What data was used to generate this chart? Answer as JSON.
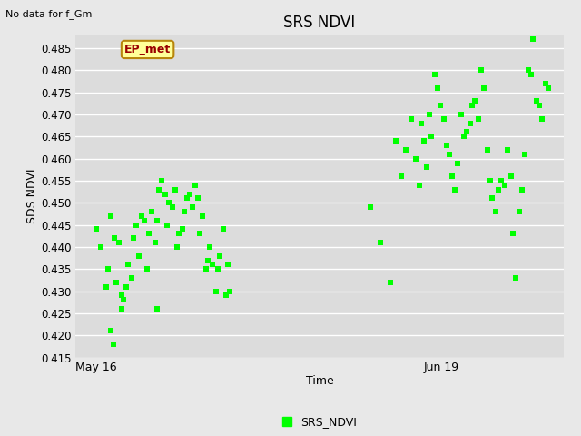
{
  "title": "SRS NDVI",
  "top_left_text": "No data for f_Gm",
  "xlabel": "Time",
  "ylabel": "SDS NDVI",
  "ylim": [
    0.415,
    0.488
  ],
  "yticks": [
    0.415,
    0.42,
    0.425,
    0.43,
    0.435,
    0.44,
    0.445,
    0.45,
    0.455,
    0.46,
    0.465,
    0.47,
    0.475,
    0.48,
    0.485
  ],
  "xtick_labels": [
    "May 16",
    "Jun 19"
  ],
  "xtick_positions": [
    0,
    34
  ],
  "xlim": [
    -2,
    46
  ],
  "legend_label": "SRS_NDVI",
  "marker_color": "#00FF00",
  "fig_bg_color": "#E8E8E8",
  "plot_bg_color": "#DCDCDC",
  "annotation_text": "EP_met",
  "annotation_color": "#990000",
  "annotation_bg": "#FFFF99",
  "annotation_border": "#B8860B",
  "points_group1": [
    [
      0.0,
      0.444
    ],
    [
      0.5,
      0.44
    ],
    [
      1.0,
      0.431
    ],
    [
      1.2,
      0.435
    ],
    [
      1.5,
      0.447
    ],
    [
      1.8,
      0.442
    ],
    [
      2.0,
      0.432
    ],
    [
      2.3,
      0.441
    ],
    [
      2.5,
      0.429
    ],
    [
      2.7,
      0.428
    ],
    [
      3.0,
      0.431
    ],
    [
      3.2,
      0.436
    ],
    [
      3.5,
      0.433
    ],
    [
      3.7,
      0.442
    ],
    [
      4.0,
      0.445
    ],
    [
      4.2,
      0.438
    ],
    [
      4.5,
      0.447
    ],
    [
      4.8,
      0.446
    ],
    [
      5.0,
      0.435
    ],
    [
      5.2,
      0.443
    ],
    [
      5.5,
      0.448
    ],
    [
      5.8,
      0.441
    ],
    [
      6.0,
      0.446
    ],
    [
      6.2,
      0.453
    ],
    [
      6.5,
      0.455
    ],
    [
      6.8,
      0.452
    ],
    [
      7.0,
      0.445
    ],
    [
      7.2,
      0.45
    ],
    [
      7.5,
      0.449
    ],
    [
      7.8,
      0.453
    ],
    [
      8.0,
      0.44
    ],
    [
      8.2,
      0.443
    ],
    [
      8.5,
      0.444
    ],
    [
      8.7,
      0.448
    ],
    [
      9.0,
      0.451
    ],
    [
      9.2,
      0.452
    ],
    [
      9.5,
      0.449
    ],
    [
      9.8,
      0.454
    ],
    [
      10.0,
      0.451
    ],
    [
      10.2,
      0.443
    ],
    [
      10.5,
      0.447
    ],
    [
      10.8,
      0.435
    ],
    [
      11.0,
      0.437
    ],
    [
      11.2,
      0.44
    ],
    [
      11.5,
      0.436
    ],
    [
      11.8,
      0.43
    ],
    [
      12.0,
      0.435
    ],
    [
      12.2,
      0.438
    ],
    [
      12.5,
      0.444
    ],
    [
      12.8,
      0.429
    ],
    [
      13.0,
      0.436
    ],
    [
      13.2,
      0.43
    ],
    [
      1.5,
      0.421
    ],
    [
      1.7,
      0.418
    ],
    [
      2.5,
      0.426
    ],
    [
      6.0,
      0.426
    ]
  ],
  "points_group2": [
    [
      27.0,
      0.449
    ],
    [
      28.0,
      0.441
    ],
    [
      29.0,
      0.432
    ],
    [
      29.5,
      0.464
    ],
    [
      30.0,
      0.456
    ],
    [
      30.5,
      0.462
    ],
    [
      31.0,
      0.469
    ],
    [
      31.5,
      0.46
    ],
    [
      31.8,
      0.454
    ],
    [
      32.0,
      0.468
    ],
    [
      32.3,
      0.464
    ],
    [
      32.5,
      0.458
    ],
    [
      32.8,
      0.47
    ],
    [
      33.0,
      0.465
    ],
    [
      33.3,
      0.479
    ],
    [
      33.6,
      0.476
    ],
    [
      33.9,
      0.472
    ],
    [
      34.2,
      0.469
    ],
    [
      34.5,
      0.463
    ],
    [
      34.8,
      0.461
    ],
    [
      35.0,
      0.456
    ],
    [
      35.3,
      0.453
    ],
    [
      35.6,
      0.459
    ],
    [
      35.9,
      0.47
    ],
    [
      36.2,
      0.465
    ],
    [
      36.5,
      0.466
    ],
    [
      36.8,
      0.468
    ],
    [
      37.0,
      0.472
    ],
    [
      37.3,
      0.473
    ],
    [
      37.6,
      0.469
    ],
    [
      37.9,
      0.48
    ],
    [
      38.2,
      0.476
    ],
    [
      38.5,
      0.462
    ],
    [
      38.8,
      0.455
    ],
    [
      39.0,
      0.451
    ],
    [
      39.3,
      0.448
    ],
    [
      39.6,
      0.453
    ],
    [
      39.9,
      0.455
    ],
    [
      40.2,
      0.454
    ],
    [
      40.5,
      0.462
    ],
    [
      40.8,
      0.456
    ],
    [
      41.0,
      0.443
    ],
    [
      41.3,
      0.433
    ],
    [
      41.6,
      0.448
    ],
    [
      41.9,
      0.453
    ],
    [
      42.2,
      0.461
    ],
    [
      42.5,
      0.48
    ],
    [
      42.8,
      0.479
    ],
    [
      43.0,
      0.487
    ],
    [
      43.3,
      0.473
    ],
    [
      43.6,
      0.472
    ],
    [
      43.9,
      0.469
    ],
    [
      44.2,
      0.477
    ],
    [
      44.5,
      0.476
    ]
  ]
}
